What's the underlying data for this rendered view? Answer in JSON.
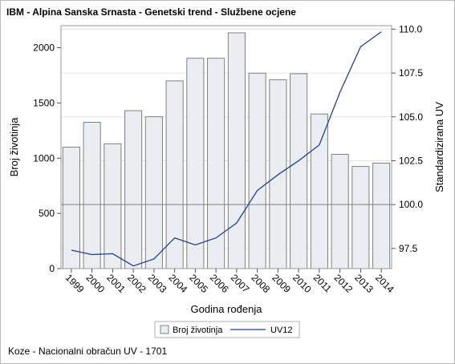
{
  "chart_data": {
    "type": "bar+line",
    "title": "IBM - Alpina Sanska Srnasta - Genetski trend - Službene ocjene",
    "xlabel": "Godina rođenja",
    "ylabel": "Broj životinja",
    "y2label": "Standardizirana UV",
    "categories": [
      "1999",
      "2000",
      "2001",
      "2002",
      "2003",
      "2004",
      "2005",
      "2006",
      "2007",
      "2008",
      "2009",
      "2010",
      "2011",
      "2012",
      "2013",
      "2014"
    ],
    "series": [
      {
        "name": "Broj životinja",
        "type": "bar",
        "axis": "left",
        "values": [
          1100,
          1325,
          1130,
          1430,
          1375,
          1700,
          1905,
          1905,
          2135,
          1770,
          1710,
          1765,
          1400,
          1035,
          925,
          955
        ]
      },
      {
        "name": "UV12",
        "type": "line",
        "axis": "right",
        "values": [
          97.4,
          97.15,
          97.2,
          96.5,
          96.9,
          98.1,
          97.7,
          98.1,
          98.95,
          100.8,
          101.7,
          102.5,
          103.4,
          106.4,
          109.0,
          109.85
        ]
      }
    ],
    "ylim": [
      0,
      2200
    ],
    "yticks": [
      0,
      500,
      1000,
      1500,
      2000
    ],
    "y2lim": [
      96.35,
      110.2
    ],
    "y2ticks": [
      "97.5",
      "100.0",
      "102.5",
      "105.0",
      "107.5",
      "110.0"
    ],
    "reference_line_y2": 100.0,
    "legend_position": "bottom",
    "colors": {
      "bar_fill": "#eaeef3",
      "bar_stroke": "#808080",
      "line": "#1f3f95",
      "grid": "#e3e3e3",
      "ref_line": "#7f7f7f"
    }
  },
  "footnote": "Koze - Nacionalni obračun UV - 1701"
}
